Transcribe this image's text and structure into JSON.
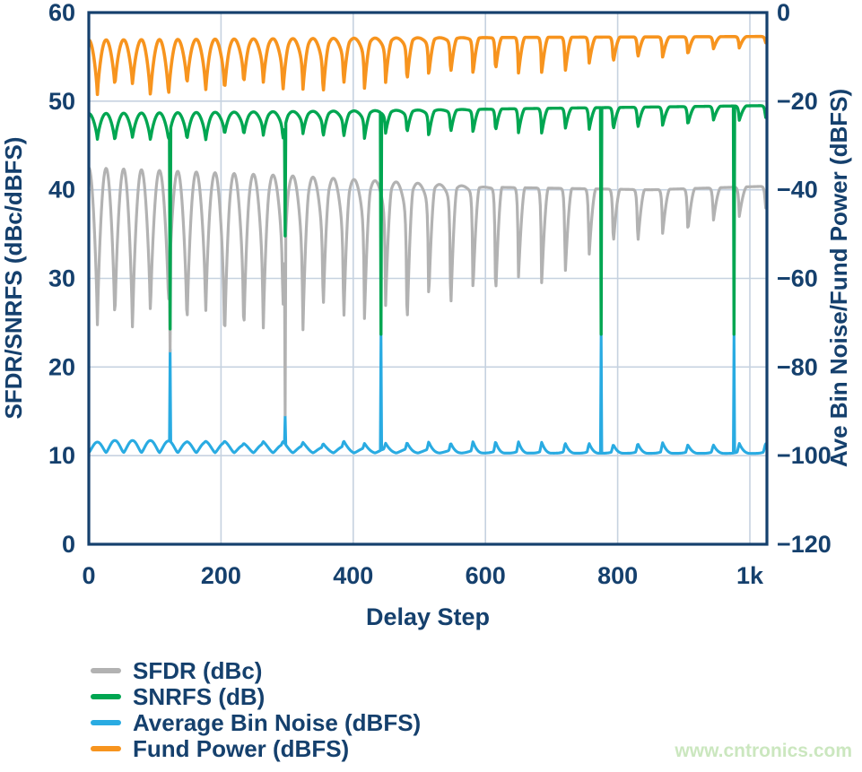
{
  "watermark": "www.cntronics.com",
  "colors": {
    "text": "#15406d",
    "axis_border": "#15406d",
    "grid": "#c6d2e0",
    "background": "#ffffff",
    "watermark": "#cbe7bf"
  },
  "chart_data": {
    "type": "line",
    "title": "",
    "xlabel": "Delay Step",
    "ylabel_left": "SFDR/SNRFS (dBc/dBFS)",
    "ylabel_right": "Ave Bin Noise/Fund Power (dBFS)",
    "x_range": [
      0,
      1025
    ],
    "y_left_range": [
      0,
      60
    ],
    "y_right_range": [
      -120,
      0
    ],
    "grid": true,
    "legend_position": "bottom-left",
    "x_ticks": [
      {
        "v": 0,
        "label": "0"
      },
      {
        "v": 200,
        "label": "200"
      },
      {
        "v": 400,
        "label": "400"
      },
      {
        "v": 600,
        "label": "600"
      },
      {
        "v": 800,
        "label": "800"
      },
      {
        "v": 1000,
        "label": "1k"
      }
    ],
    "y_left_ticks": [
      {
        "v": 0,
        "label": "0"
      },
      {
        "v": 10,
        "label": "10"
      },
      {
        "v": 20,
        "label": "20"
      },
      {
        "v": 30,
        "label": "30"
      },
      {
        "v": 40,
        "label": "40"
      },
      {
        "v": 50,
        "label": "50"
      },
      {
        "v": 60,
        "label": "60"
      }
    ],
    "y_right_ticks": [
      {
        "v": 0,
        "label": "0"
      },
      {
        "v": -20,
        "label": "−20"
      },
      {
        "v": -40,
        "label": "−40"
      },
      {
        "v": -60,
        "label": "−60"
      },
      {
        "v": -80,
        "label": "−80"
      },
      {
        "v": -100,
        "label": "−100"
      },
      {
        "v": -120,
        "label": "−120"
      }
    ],
    "oscillation": {
      "period_steps_start": 26,
      "period_steps_end": 40,
      "shape_morph_start": 120,
      "shape_morph_end": 620
    },
    "series": [
      {
        "name": "SFDR (dBc)",
        "slug": "sfdr",
        "color": "#b2b2b2",
        "axis": "left",
        "style": "dip",
        "seed": 1,
        "stroke": 3.2,
        "top_envelope": [
          [
            0,
            42.5
          ],
          [
            300,
            41.6
          ],
          [
            600,
            40.3
          ],
          [
            850,
            40.0
          ],
          [
            1025,
            40.4
          ]
        ],
        "bottom_envelope": [
          [
            0,
            24.0
          ],
          [
            450,
            24.5
          ],
          [
            650,
            29.0
          ],
          [
            800,
            33.5
          ],
          [
            950,
            36.5
          ],
          [
            1025,
            37.5
          ]
        ],
        "glitch_spikes": [
          [
            123,
            21.8
          ],
          [
            297,
            14.6
          ]
        ]
      },
      {
        "name": "SNRFS (dB)",
        "slug": "snrfs",
        "color": "#00a651",
        "axis": "left",
        "style": "dip",
        "seed": 2,
        "stroke": 3.4,
        "top_envelope": [
          [
            0,
            48.6
          ],
          [
            400,
            48.9
          ],
          [
            700,
            49.2
          ],
          [
            1025,
            49.5
          ]
        ],
        "bottom_envelope": [
          [
            0,
            45.6
          ],
          [
            400,
            45.9
          ],
          [
            700,
            46.6
          ],
          [
            900,
            47.3
          ],
          [
            1025,
            48.0
          ]
        ],
        "glitch_spikes": [
          [
            123,
            24.3
          ],
          [
            297,
            34.8
          ],
          [
            442,
            23.7
          ],
          [
            775,
            23.7
          ],
          [
            976,
            23.7
          ]
        ]
      },
      {
        "name": "Average Bin Noise (dBFS)",
        "slug": "avg-bin-noise",
        "color": "#29abe2",
        "axis": "right",
        "style": "bump",
        "seed": 3,
        "stroke": 3.1,
        "top_envelope": [
          [
            0,
            -96.8
          ],
          [
            500,
            -97.0
          ],
          [
            1025,
            -97.4
          ]
        ],
        "bottom_envelope": [
          [
            0,
            -99.3
          ],
          [
            1025,
            -99.5
          ]
        ],
        "glitch_spikes": [
          [
            123,
            -76.0
          ],
          [
            297,
            -91.0
          ],
          [
            442,
            -72.5
          ],
          [
            775,
            -72.5
          ],
          [
            976,
            -72.5
          ]
        ]
      },
      {
        "name": "Fund Power (dBFS)",
        "slug": "fund-power",
        "color": "#f7941e",
        "axis": "right",
        "style": "dip",
        "seed": 4,
        "stroke": 3.6,
        "top_envelope": [
          [
            0,
            -6.2
          ],
          [
            500,
            -5.7
          ],
          [
            1025,
            -5.4
          ]
        ],
        "bottom_envelope": [
          [
            0,
            -18.3
          ],
          [
            350,
            -17.8
          ],
          [
            600,
            -14.5
          ],
          [
            800,
            -11.5
          ],
          [
            950,
            -8.5
          ],
          [
            1025,
            -7.0
          ]
        ],
        "glitch_spikes": []
      }
    ],
    "draw_order": [
      2,
      0,
      1,
      3
    ],
    "legend": [
      {
        "label": "SFDR (dBc)",
        "color": "#b2b2b2"
      },
      {
        "label": "SNRFS (dB)",
        "color": "#00a651"
      },
      {
        "label": "Average Bin Noise (dBFS)",
        "color": "#29abe2"
      },
      {
        "label": "Fund Power (dBFS)",
        "color": "#f7941e"
      }
    ]
  }
}
